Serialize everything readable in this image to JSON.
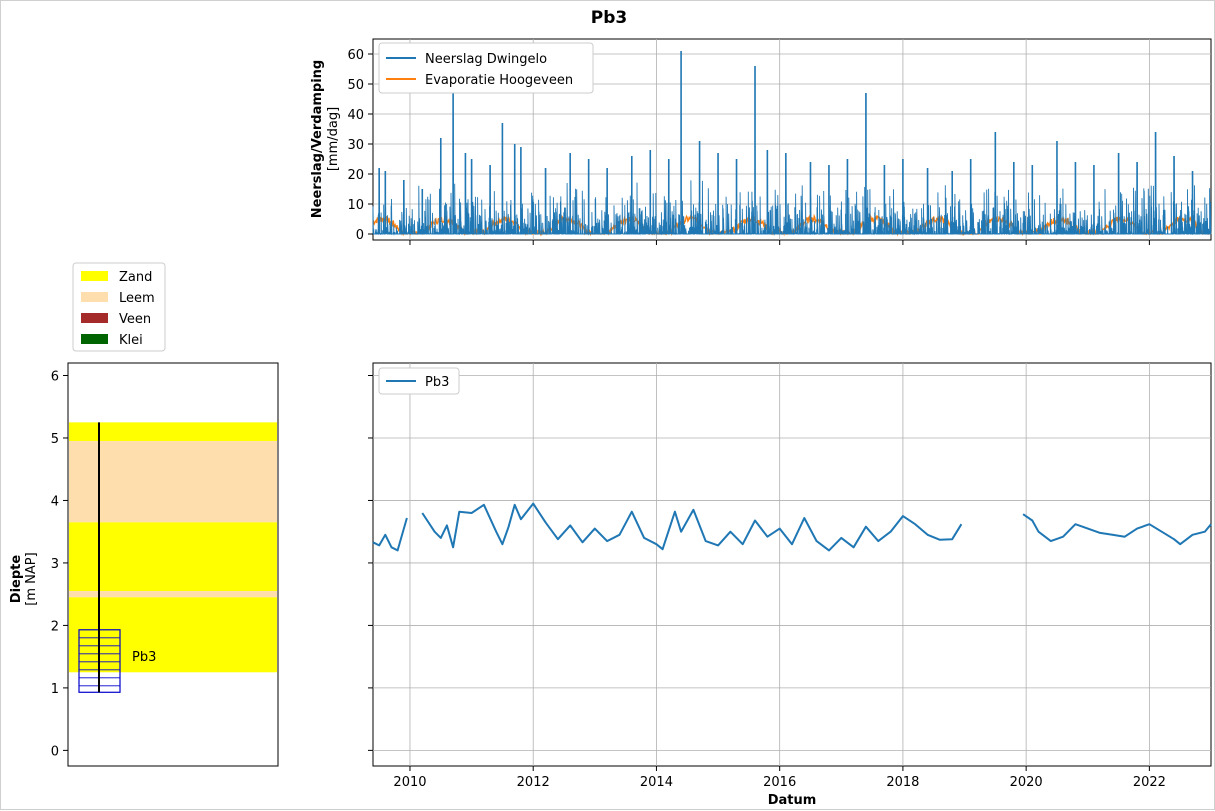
{
  "title": "Pb3",
  "chart_data": [
    {
      "id": "precip",
      "type": "line",
      "ylabel": "Neerslag/Verdamping",
      "ylabel_unit": "[mm/dag]",
      "ylim": [
        -2,
        65
      ],
      "yticks": [
        "0",
        "10",
        "20",
        "30",
        "40",
        "50",
        "60"
      ],
      "xlim": [
        2009.4,
        2023.0
      ],
      "legend_position": "top-left",
      "grid": true,
      "series": [
        {
          "name": "Neerslag Dwingelo",
          "color": "#1f77b4",
          "peaks": [
            [
              2009.5,
              22
            ],
            [
              2009.6,
              21
            ],
            [
              2009.9,
              18
            ],
            [
              2010.2,
              15
            ],
            [
              2010.5,
              32
            ],
            [
              2010.7,
              47
            ],
            [
              2010.9,
              27
            ],
            [
              2011.0,
              25
            ],
            [
              2011.3,
              23
            ],
            [
              2011.5,
              37
            ],
            [
              2011.7,
              30
            ],
            [
              2011.8,
              29
            ],
            [
              2012.2,
              22
            ],
            [
              2012.6,
              27
            ],
            [
              2012.9,
              25
            ],
            [
              2013.2,
              22
            ],
            [
              2013.6,
              26
            ],
            [
              2013.9,
              28
            ],
            [
              2014.2,
              25
            ],
            [
              2014.4,
              61
            ],
            [
              2014.7,
              31
            ],
            [
              2015.0,
              27
            ],
            [
              2015.3,
              25
            ],
            [
              2015.6,
              56
            ],
            [
              2015.8,
              28
            ],
            [
              2016.1,
              27
            ],
            [
              2016.5,
              24
            ],
            [
              2016.8,
              23
            ],
            [
              2017.1,
              25
            ],
            [
              2017.4,
              47
            ],
            [
              2017.7,
              23
            ],
            [
              2018.0,
              25
            ],
            [
              2018.4,
              22
            ],
            [
              2018.8,
              21
            ],
            [
              2019.1,
              25
            ],
            [
              2019.5,
              34
            ],
            [
              2019.8,
              24
            ],
            [
              2020.1,
              23
            ],
            [
              2020.5,
              31
            ],
            [
              2020.8,
              24
            ],
            [
              2021.1,
              23
            ],
            [
              2021.5,
              27
            ],
            [
              2021.8,
              24
            ],
            [
              2022.1,
              34
            ],
            [
              2022.4,
              26
            ],
            [
              2022.7,
              21
            ]
          ]
        },
        {
          "name": "Evaporatie Hoogeveen",
          "color": "#ff7f0e",
          "amplitude_mm": 5
        }
      ]
    },
    {
      "id": "head",
      "type": "line",
      "xlabel": "Datum",
      "xlim": [
        2009.4,
        2023.0
      ],
      "xticks": [
        "2010",
        "2012",
        "2014",
        "2016",
        "2018",
        "2020",
        "2022"
      ],
      "legend_position": "top-left",
      "grid": true,
      "series": [
        {
          "name": "Pb3",
          "color": "#1f77b4",
          "segments": [
            [
              [
                2009.4,
                3.33
              ],
              [
                2009.5,
                3.28
              ],
              [
                2009.6,
                3.45
              ],
              [
                2009.7,
                3.25
              ],
              [
                2009.8,
                3.2
              ],
              [
                2009.95,
                3.72
              ]
            ],
            [
              [
                2010.2,
                3.8
              ],
              [
                2010.4,
                3.5
              ],
              [
                2010.5,
                3.4
              ],
              [
                2010.6,
                3.6
              ],
              [
                2010.7,
                3.25
              ],
              [
                2010.8,
                3.82
              ],
              [
                2011.0,
                3.8
              ],
              [
                2011.2,
                3.93
              ],
              [
                2011.4,
                3.5
              ],
              [
                2011.5,
                3.3
              ],
              [
                2011.6,
                3.58
              ],
              [
                2011.7,
                3.93
              ],
              [
                2011.8,
                3.7
              ],
              [
                2012.0,
                3.95
              ],
              [
                2012.2,
                3.65
              ],
              [
                2012.4,
                3.38
              ],
              [
                2012.6,
                3.6
              ],
              [
                2012.8,
                3.33
              ],
              [
                2013.0,
                3.55
              ],
              [
                2013.2,
                3.35
              ],
              [
                2013.4,
                3.45
              ],
              [
                2013.6,
                3.82
              ],
              [
                2013.8,
                3.4
              ],
              [
                2014.0,
                3.3
              ],
              [
                2014.1,
                3.22
              ],
              [
                2014.3,
                3.82
              ],
              [
                2014.4,
                3.5
              ],
              [
                2014.6,
                3.85
              ],
              [
                2014.8,
                3.35
              ],
              [
                2015.0,
                3.28
              ],
              [
                2015.2,
                3.5
              ],
              [
                2015.4,
                3.3
              ],
              [
                2015.6,
                3.68
              ],
              [
                2015.8,
                3.42
              ],
              [
                2016.0,
                3.55
              ],
              [
                2016.2,
                3.3
              ],
              [
                2016.4,
                3.72
              ],
              [
                2016.6,
                3.35
              ],
              [
                2016.8,
                3.2
              ],
              [
                2017.0,
                3.4
              ],
              [
                2017.2,
                3.25
              ],
              [
                2017.4,
                3.58
              ],
              [
                2017.6,
                3.35
              ],
              [
                2017.8,
                3.5
              ],
              [
                2018.0,
                3.75
              ],
              [
                2018.2,
                3.62
              ],
              [
                2018.4,
                3.45
              ],
              [
                2018.6,
                3.37
              ],
              [
                2018.8,
                3.38
              ],
              [
                2018.95,
                3.62
              ]
            ],
            [
              [
                2019.95,
                3.78
              ],
              [
                2020.1,
                3.68
              ],
              [
                2020.2,
                3.5
              ],
              [
                2020.4,
                3.35
              ],
              [
                2020.6,
                3.42
              ],
              [
                2020.8,
                3.62
              ],
              [
                2021.0,
                3.55
              ],
              [
                2021.2,
                3.48
              ],
              [
                2021.4,
                3.45
              ],
              [
                2021.6,
                3.42
              ],
              [
                2021.8,
                3.55
              ],
              [
                2022.0,
                3.62
              ],
              [
                2022.2,
                3.5
              ],
              [
                2022.4,
                3.38
              ],
              [
                2022.5,
                3.3
              ],
              [
                2022.7,
                3.45
              ],
              [
                2022.9,
                3.5
              ],
              [
                2023.0,
                3.62
              ]
            ]
          ]
        }
      ]
    },
    {
      "id": "borehole",
      "type": "bar",
      "ylabel": "Diepte",
      "ylabel_unit": "[m NAP]",
      "ylim": [
        -0.25,
        6.2
      ],
      "yticks": [
        "0",
        "1",
        "2",
        "3",
        "4",
        "5",
        "6"
      ],
      "grid": false,
      "legend": [
        "Zand",
        "Leem",
        "Veen",
        "Klei"
      ],
      "legend_colors": [
        "#ffff00",
        "#ffdead",
        "#a52a2a",
        "#006400"
      ],
      "layers": [
        {
          "soil": "Zand",
          "top": 5.25,
          "bottom": 4.95
        },
        {
          "soil": "Leem",
          "top": 4.95,
          "bottom": 3.65
        },
        {
          "soil": "Zand",
          "top": 3.65,
          "bottom": 2.55
        },
        {
          "soil": "Leem",
          "top": 2.55,
          "bottom": 2.45
        },
        {
          "soil": "Zand",
          "top": 2.45,
          "bottom": 1.25
        }
      ],
      "well": {
        "name": "Pb3",
        "top": 5.25,
        "filter_top": 1.93,
        "filter_bottom": 0.93
      }
    }
  ]
}
